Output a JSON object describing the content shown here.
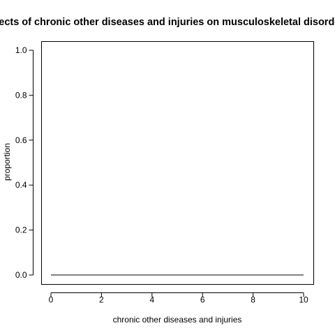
{
  "chart_data": {
    "type": "line",
    "title": "Effects of chronic other diseases and injuries on musculoskeletal disorders",
    "xlabel": "chronic other diseases and injuries",
    "ylabel": "proportion",
    "xlim": [
      0,
      10
    ],
    "ylim": [
      0,
      1
    ],
    "x_ticks": [
      0,
      2,
      4,
      6,
      8,
      10
    ],
    "y_ticks": [
      0.0,
      0.2,
      0.4,
      0.6,
      0.8,
      1.0
    ],
    "x_tick_labels": [
      "0",
      "2",
      "4",
      "6",
      "8",
      "10"
    ],
    "y_tick_labels": [
      "0.0",
      "0.2",
      "0.4",
      "0.6",
      "0.8",
      "1.0"
    ],
    "grid": false,
    "series": [
      {
        "color": "#000000",
        "x": [
          0,
          1,
          2,
          3,
          4,
          5,
          6,
          7,
          8,
          9,
          10
        ],
        "y": [
          0,
          0,
          0,
          0,
          0,
          0,
          0,
          0,
          0,
          0,
          0
        ]
      }
    ]
  }
}
